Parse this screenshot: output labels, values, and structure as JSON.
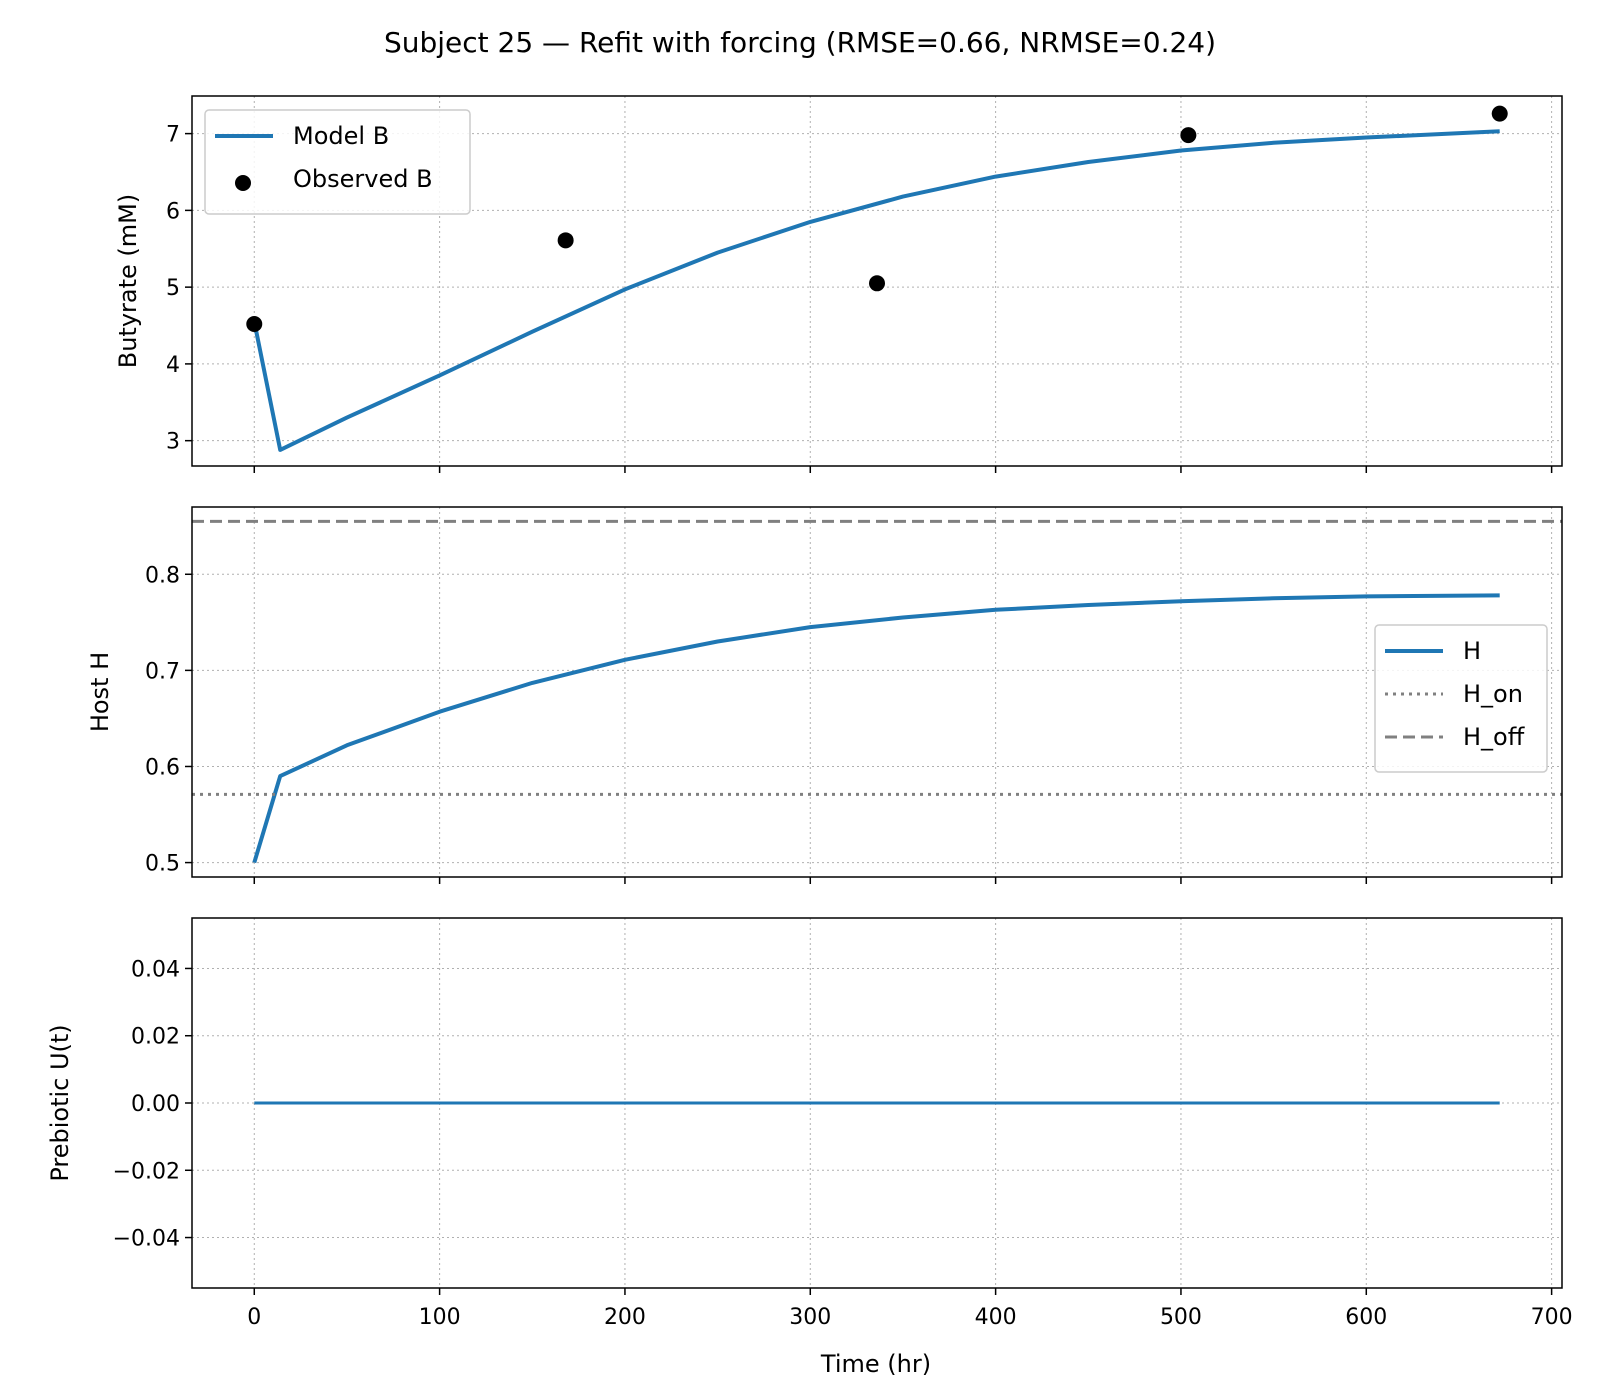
{
  "title": "Subject 25 — Refit with forcing (RMSE=0.66, NRMSE=0.24)",
  "xlabel": "Time (hr)",
  "xlim": [
    -33.6,
    705.6
  ],
  "xticks": [
    0,
    100,
    200,
    300,
    400,
    500,
    600,
    700
  ],
  "x_tick_labels": [
    "0",
    "100",
    "200",
    "300",
    "400",
    "500",
    "600",
    "700"
  ],
  "colors": {
    "model": "#1f77b4",
    "observed": "#000000",
    "threshold": "#808080",
    "grid": "#b0b0b0"
  },
  "chart_data": [
    {
      "type": "line",
      "panel": "butyrate",
      "ylabel": "Butyrate (mM)",
      "ylim": [
        2.67,
        7.49
      ],
      "yticks": [
        3,
        4,
        5,
        6,
        7
      ],
      "y_tick_labels": [
        "3",
        "4",
        "5",
        "6",
        "7"
      ],
      "grid": true,
      "legend_position": "upper-left",
      "series": [
        {
          "name": "Model B",
          "kind": "line",
          "x": [
            0,
            14,
            50,
            100,
            150,
            200,
            250,
            300,
            350,
            400,
            450,
            500,
            550,
            600,
            672
          ],
          "y": [
            4.55,
            2.88,
            3.3,
            3.85,
            4.42,
            4.97,
            5.45,
            5.85,
            6.18,
            6.44,
            6.63,
            6.78,
            6.88,
            6.95,
            7.03
          ]
        },
        {
          "name": "Observed B",
          "kind": "scatter",
          "x": [
            0,
            168,
            336,
            504,
            672
          ],
          "y": [
            4.52,
            5.61,
            5.05,
            6.98,
            7.26
          ]
        }
      ]
    },
    {
      "type": "line",
      "panel": "host",
      "ylabel": "Host H",
      "ylim": [
        0.485,
        0.87
      ],
      "yticks": [
        0.5,
        0.6,
        0.7,
        0.8
      ],
      "y_tick_labels": [
        "0.5",
        "0.6",
        "0.7",
        "0.8"
      ],
      "grid": true,
      "legend_position": "center-right",
      "series": [
        {
          "name": "H",
          "kind": "line",
          "x": [
            0,
            14,
            50,
            100,
            150,
            200,
            250,
            300,
            350,
            400,
            450,
            500,
            550,
            600,
            672
          ],
          "y": [
            0.5,
            0.59,
            0.622,
            0.657,
            0.687,
            0.711,
            0.73,
            0.745,
            0.755,
            0.763,
            0.768,
            0.772,
            0.775,
            0.777,
            0.778
          ]
        },
        {
          "name": "H_on",
          "kind": "hline",
          "y": 0.571,
          "style": "dotted"
        },
        {
          "name": "H_off",
          "kind": "hline",
          "y": 0.855,
          "style": "dashed"
        }
      ]
    },
    {
      "type": "line",
      "panel": "prebiotic",
      "ylabel": "Prebiotic U(t)",
      "ylim": [
        -0.055,
        0.055
      ],
      "yticks": [
        -0.04,
        -0.02,
        0,
        0.02,
        0.04
      ],
      "y_tick_labels": [
        "−0.04",
        "−0.02",
        "0.00",
        "0.02",
        "0.04"
      ],
      "grid": true,
      "series": [
        {
          "kind": "line",
          "x": [
            0,
            672
          ],
          "y": [
            0,
            0
          ]
        }
      ]
    }
  ]
}
